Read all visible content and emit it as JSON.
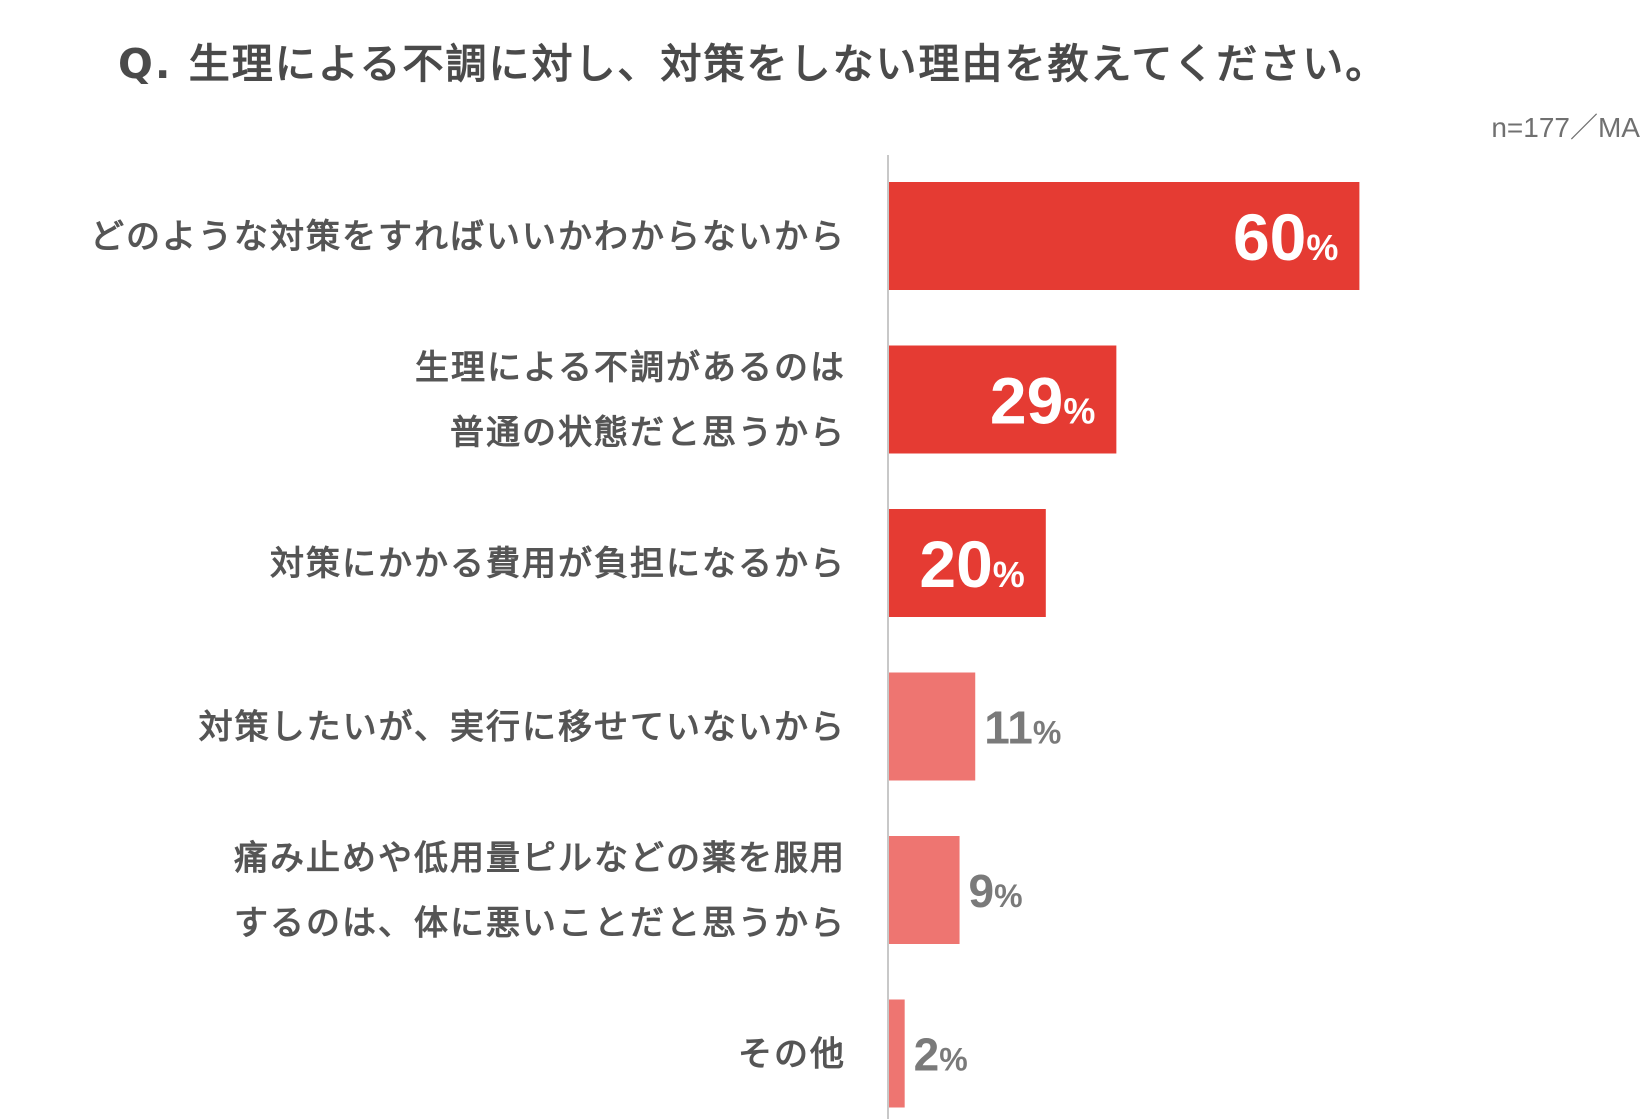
{
  "header": {
    "title": "Q. 生理による不調に対し、対策をしない理由を教えてください。",
    "sample_note": "n=177／MA"
  },
  "colors": {
    "highlight_bar": "#e53b33",
    "normal_bar": "#ee7571",
    "label_text": "#555555",
    "value_outside": "#7a7a7a",
    "value_inside": "#ffffff",
    "axis_line": "#c8c8c8"
  },
  "chart_data": {
    "type": "bar",
    "orientation": "horizontal",
    "title": "Q. 生理による不調に対し、対策をしない理由を教えてください。",
    "unit": "%",
    "xlim": [
      0,
      100
    ],
    "grid": false,
    "legend": false,
    "categories": [
      [
        "どのような対策をすればいいかわからないから"
      ],
      [
        "生理による不調があるのは",
        "普通の状態だと思うから"
      ],
      [
        "対策にかかる費用が負担になるから"
      ],
      [
        "対策したいが、実行に移せていないから"
      ],
      [
        "痛み止めや低用量ピルなどの薬を服用",
        "するのは、体に悪いことだと思うから"
      ],
      [
        "その他"
      ]
    ],
    "values": [
      60,
      29,
      20,
      11,
      9,
      2
    ],
    "highlighted": [
      true,
      true,
      true,
      false,
      false,
      false
    ]
  }
}
